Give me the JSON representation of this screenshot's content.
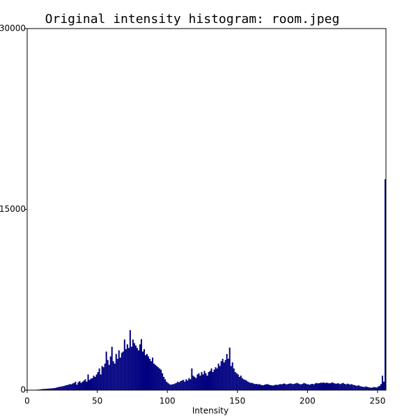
{
  "chart_data": {
    "type": "histogram",
    "title": "Original intensity histogram: room.jpeg",
    "xlabel": "Intensity",
    "color": "#000080",
    "bins": [
      0,
      1,
      2,
      3,
      4,
      5,
      6,
      7,
      8,
      9,
      10,
      11,
      12,
      13,
      14,
      15,
      16,
      17,
      18,
      19,
      20,
      21,
      22,
      23,
      24,
      25,
      26,
      27,
      28,
      29,
      30,
      31,
      32,
      33,
      34,
      35,
      36,
      37,
      38,
      39,
      40,
      41,
      42,
      43,
      44,
      45,
      46,
      47,
      48,
      49,
      50,
      51,
      52,
      53,
      54,
      55,
      56,
      57,
      58,
      59,
      60,
      61,
      62,
      63,
      64,
      65,
      66,
      67,
      68,
      69,
      70,
      71,
      72,
      73,
      74,
      75,
      76,
      77,
      78,
      79,
      80,
      81,
      82,
      83,
      84,
      85,
      86,
      87,
      88,
      89,
      90,
      91,
      92,
      93,
      94,
      95,
      96,
      97,
      98,
      99,
      100,
      101,
      102,
      103,
      104,
      105,
      106,
      107,
      108,
      109,
      110,
      111,
      112,
      113,
      114,
      115,
      116,
      117,
      118,
      119,
      120,
      121,
      122,
      123,
      124,
      125,
      126,
      127,
      128,
      129,
      130,
      131,
      132,
      133,
      134,
      135,
      136,
      137,
      138,
      139,
      140,
      141,
      142,
      143,
      144,
      145,
      146,
      147,
      148,
      149,
      150,
      151,
      152,
      153,
      154,
      155,
      156,
      157,
      158,
      159,
      160,
      161,
      162,
      163,
      164,
      165,
      166,
      167,
      168,
      169,
      170,
      171,
      172,
      173,
      174,
      175,
      176,
      177,
      178,
      179,
      180,
      181,
      182,
      183,
      184,
      185,
      186,
      187,
      188,
      189,
      190,
      191,
      192,
      193,
      194,
      195,
      196,
      197,
      198,
      199,
      200,
      201,
      202,
      203,
      204,
      205,
      206,
      207,
      208,
      209,
      210,
      211,
      212,
      213,
      214,
      215,
      216,
      217,
      218,
      219,
      220,
      221,
      222,
      223,
      224,
      225,
      226,
      227,
      228,
      229,
      230,
      231,
      232,
      233,
      234,
      235,
      236,
      237,
      238,
      239,
      240,
      241,
      242,
      243,
      244,
      245,
      246,
      247,
      248,
      249,
      250,
      251,
      252,
      253,
      254,
      255,
      256
    ],
    "values": [
      10,
      15,
      20,
      25,
      30,
      30,
      35,
      40,
      50,
      60,
      80,
      90,
      110,
      100,
      120,
      130,
      140,
      150,
      160,
      170,
      200,
      230,
      260,
      280,
      300,
      330,
      350,
      400,
      420,
      450,
      500,
      480,
      550,
      600,
      700,
      450,
      650,
      750,
      600,
      700,
      800,
      900,
      700,
      1300,
      850,
      950,
      1000,
      1200,
      1100,
      1300,
      1500,
      1800,
      1300,
      2000,
      1900,
      2200,
      3200,
      2500,
      2100,
      2800,
      3600,
      2400,
      2200,
      3000,
      2600,
      3300,
      2700,
      3100,
      3200,
      4200,
      3400,
      3800,
      3500,
      4980,
      3600,
      4200,
      3900,
      3700,
      3500,
      3300,
      3800,
      4230,
      3200,
      3400,
      2900,
      3000,
      2800,
      2600,
      2400,
      2700,
      2200,
      2100,
      2000,
      1900,
      1800,
      1700,
      1400,
      1100,
      900,
      700,
      600,
      500,
      450,
      480,
      500,
      550,
      600,
      700,
      650,
      750,
      800,
      850,
      700,
      900,
      800,
      1000,
      900,
      1800,
      1200,
      1100,
      1000,
      1300,
      1400,
      1200,
      1500,
      1300,
      1600,
      1400,
      1200,
      1500,
      1600,
      1800,
      1500,
      1700,
      1900,
      1800,
      2200,
      2000,
      2400,
      2600,
      2300,
      2500,
      3000,
      2600,
      3530,
      2000,
      2300,
      1800,
      1500,
      1400,
      1300,
      1100,
      1200,
      1000,
      900,
      850,
      800,
      700,
      650,
      600,
      600,
      550,
      500,
      520,
      480,
      500,
      450,
      420,
      400,
      450,
      480,
      500,
      450,
      420,
      400,
      380,
      420,
      450,
      430,
      460,
      500,
      480,
      520,
      550,
      500,
      480,
      520,
      560,
      540,
      500,
      520,
      560,
      600,
      550,
      500,
      480,
      520,
      600,
      550,
      500,
      480,
      450,
      500,
      520,
      480,
      550,
      600,
      560,
      580,
      620,
      600,
      650,
      580,
      620,
      600,
      560,
      580,
      640,
      600,
      560,
      520,
      580,
      540,
      500,
      560,
      600,
      520,
      480,
      540,
      500,
      460,
      500,
      440,
      420,
      380,
      360,
      400,
      340,
      300,
      280,
      260,
      300,
      280,
      240,
      220,
      200,
      220,
      260,
      240,
      220,
      300,
      350,
      500,
      1200,
      700,
      17500
    ],
    "xlim": [
      0,
      256
    ],
    "xticks": [
      0,
      50,
      100,
      150,
      200,
      250
    ],
    "ylim": [
      0,
      30000
    ],
    "yticks": [
      0,
      15000,
      30000
    ]
  }
}
